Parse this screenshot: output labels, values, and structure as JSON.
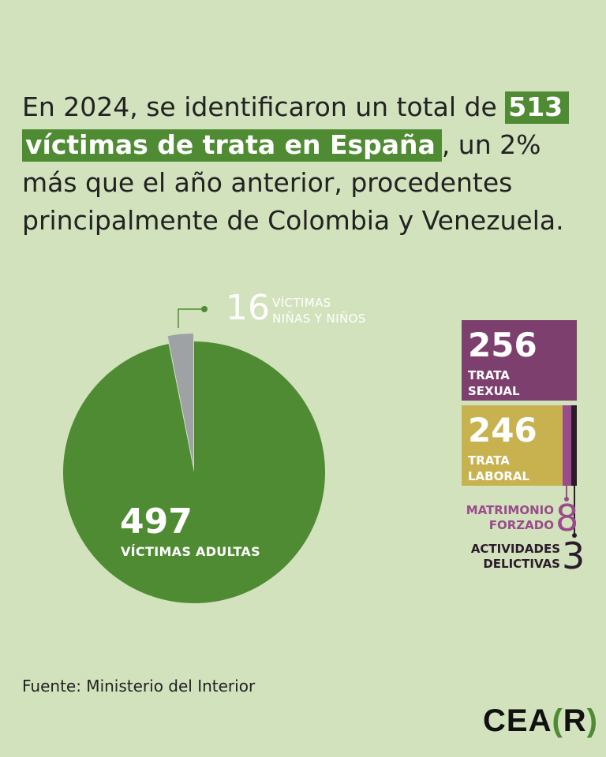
{
  "headline": {
    "part1": "En 2024, se identificaron un total de ",
    "highlight1": "513",
    "highlight2": "víctimas de trata en España",
    "part2": ", un 2% más que el año anterior, procedentes principalmente de Colombia y Venezuela."
  },
  "colors": {
    "background": "#d2e2bd",
    "green": "#4f8b33",
    "gray": "#9fa2a4",
    "purple": "#7d3f6d",
    "gold": "#c8b250",
    "magenta": "#9a4b8b",
    "dark": "#2b1b2b"
  },
  "chart_data": [
    {
      "type": "pie",
      "total": 513,
      "slices": [
        {
          "number": "497",
          "label": "VÍCTIMAS ADULTAS",
          "value": 497,
          "color": "#4f8b33"
        },
        {
          "number": "16",
          "label_line1": "VÍCTIMAS",
          "label_line2": "NIÑAS Y NIÑOS",
          "value": 16,
          "color": "#9fa2a4"
        }
      ]
    },
    {
      "type": "bar",
      "stacked": true,
      "segments": [
        {
          "number": "256",
          "label": "TRATA\nSEXUAL",
          "value": 256,
          "color": "#7d3f6d"
        },
        {
          "number": "246",
          "label": "TRATA\nLABORAL",
          "value": 246,
          "color": "#c8b250"
        },
        {
          "number": "8",
          "label": "MATRIMONIO\nFORZADO",
          "value": 8,
          "color": "#9a4b8b"
        },
        {
          "number": "3",
          "label": "ACTIVIDADES\nDELICTIVAS",
          "value": 3,
          "color": "#2b1b2b"
        }
      ]
    }
  ],
  "source": "Fuente: Ministerio del Interior",
  "logo": {
    "left": "CEA",
    "open": "(",
    "letter": "R",
    "close": ")"
  }
}
